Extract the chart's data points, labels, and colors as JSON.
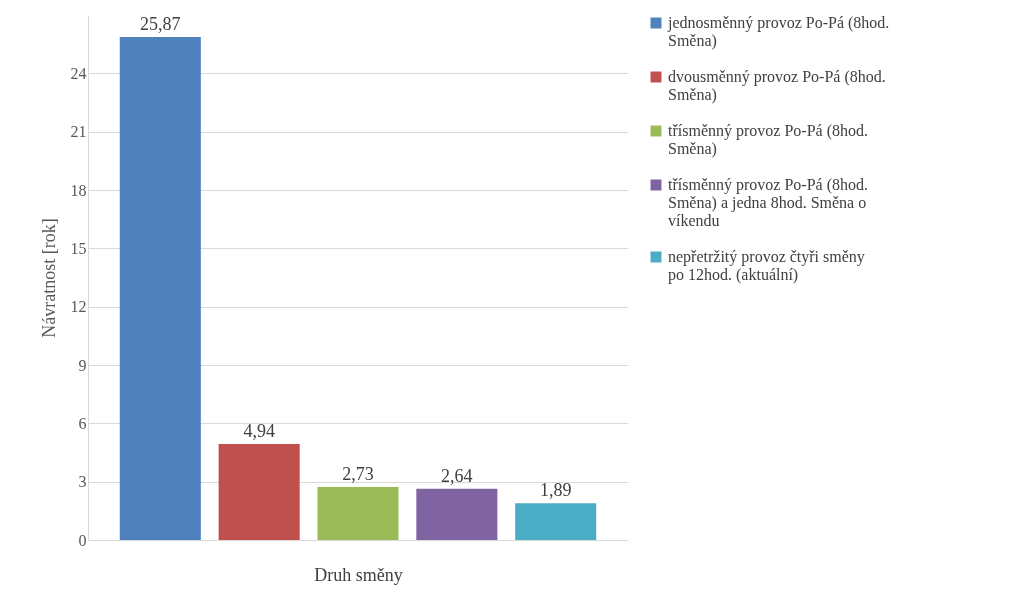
{
  "chart_data": {
    "type": "bar",
    "xlabel": "Druh směny",
    "ylabel": "Návratnost [rok]",
    "categories": [
      null
    ],
    "series": [
      {
        "name": "jednosměnný provoz Po-Pá (8hod. Směna)",
        "color": "#4f81bd",
        "values": [
          25.87
        ],
        "value_labels": [
          "25,87"
        ]
      },
      {
        "name": "dvousměnný provoz Po-Pá (8hod. Směna)",
        "color": "#c0504d",
        "values": [
          4.94
        ],
        "value_labels": [
          "4,94"
        ]
      },
      {
        "name": "třísměnný provoz Po-Pá (8hod. Směna)",
        "color": "#9bbb59",
        "values": [
          2.73
        ],
        "value_labels": [
          "2,73"
        ]
      },
      {
        "name": "třísměnný provoz Po-Pá (8hod. Směna) a jedna 8hod. Směna o víkendu",
        "color": "#8064a2",
        "values": [
          2.64
        ],
        "value_labels": [
          "2,64"
        ]
      },
      {
        "name": "nepřetržitý provoz čtyři směny po 12hod. (aktuální)",
        "color": "#4bacc6",
        "values": [
          1.89
        ],
        "value_labels": [
          "1,89"
        ]
      }
    ],
    "ylim": [
      0,
      27
    ],
    "yticks": [
      0,
      3,
      6,
      9,
      12,
      15,
      18,
      21,
      24
    ],
    "grid": "y",
    "legend": "right"
  }
}
